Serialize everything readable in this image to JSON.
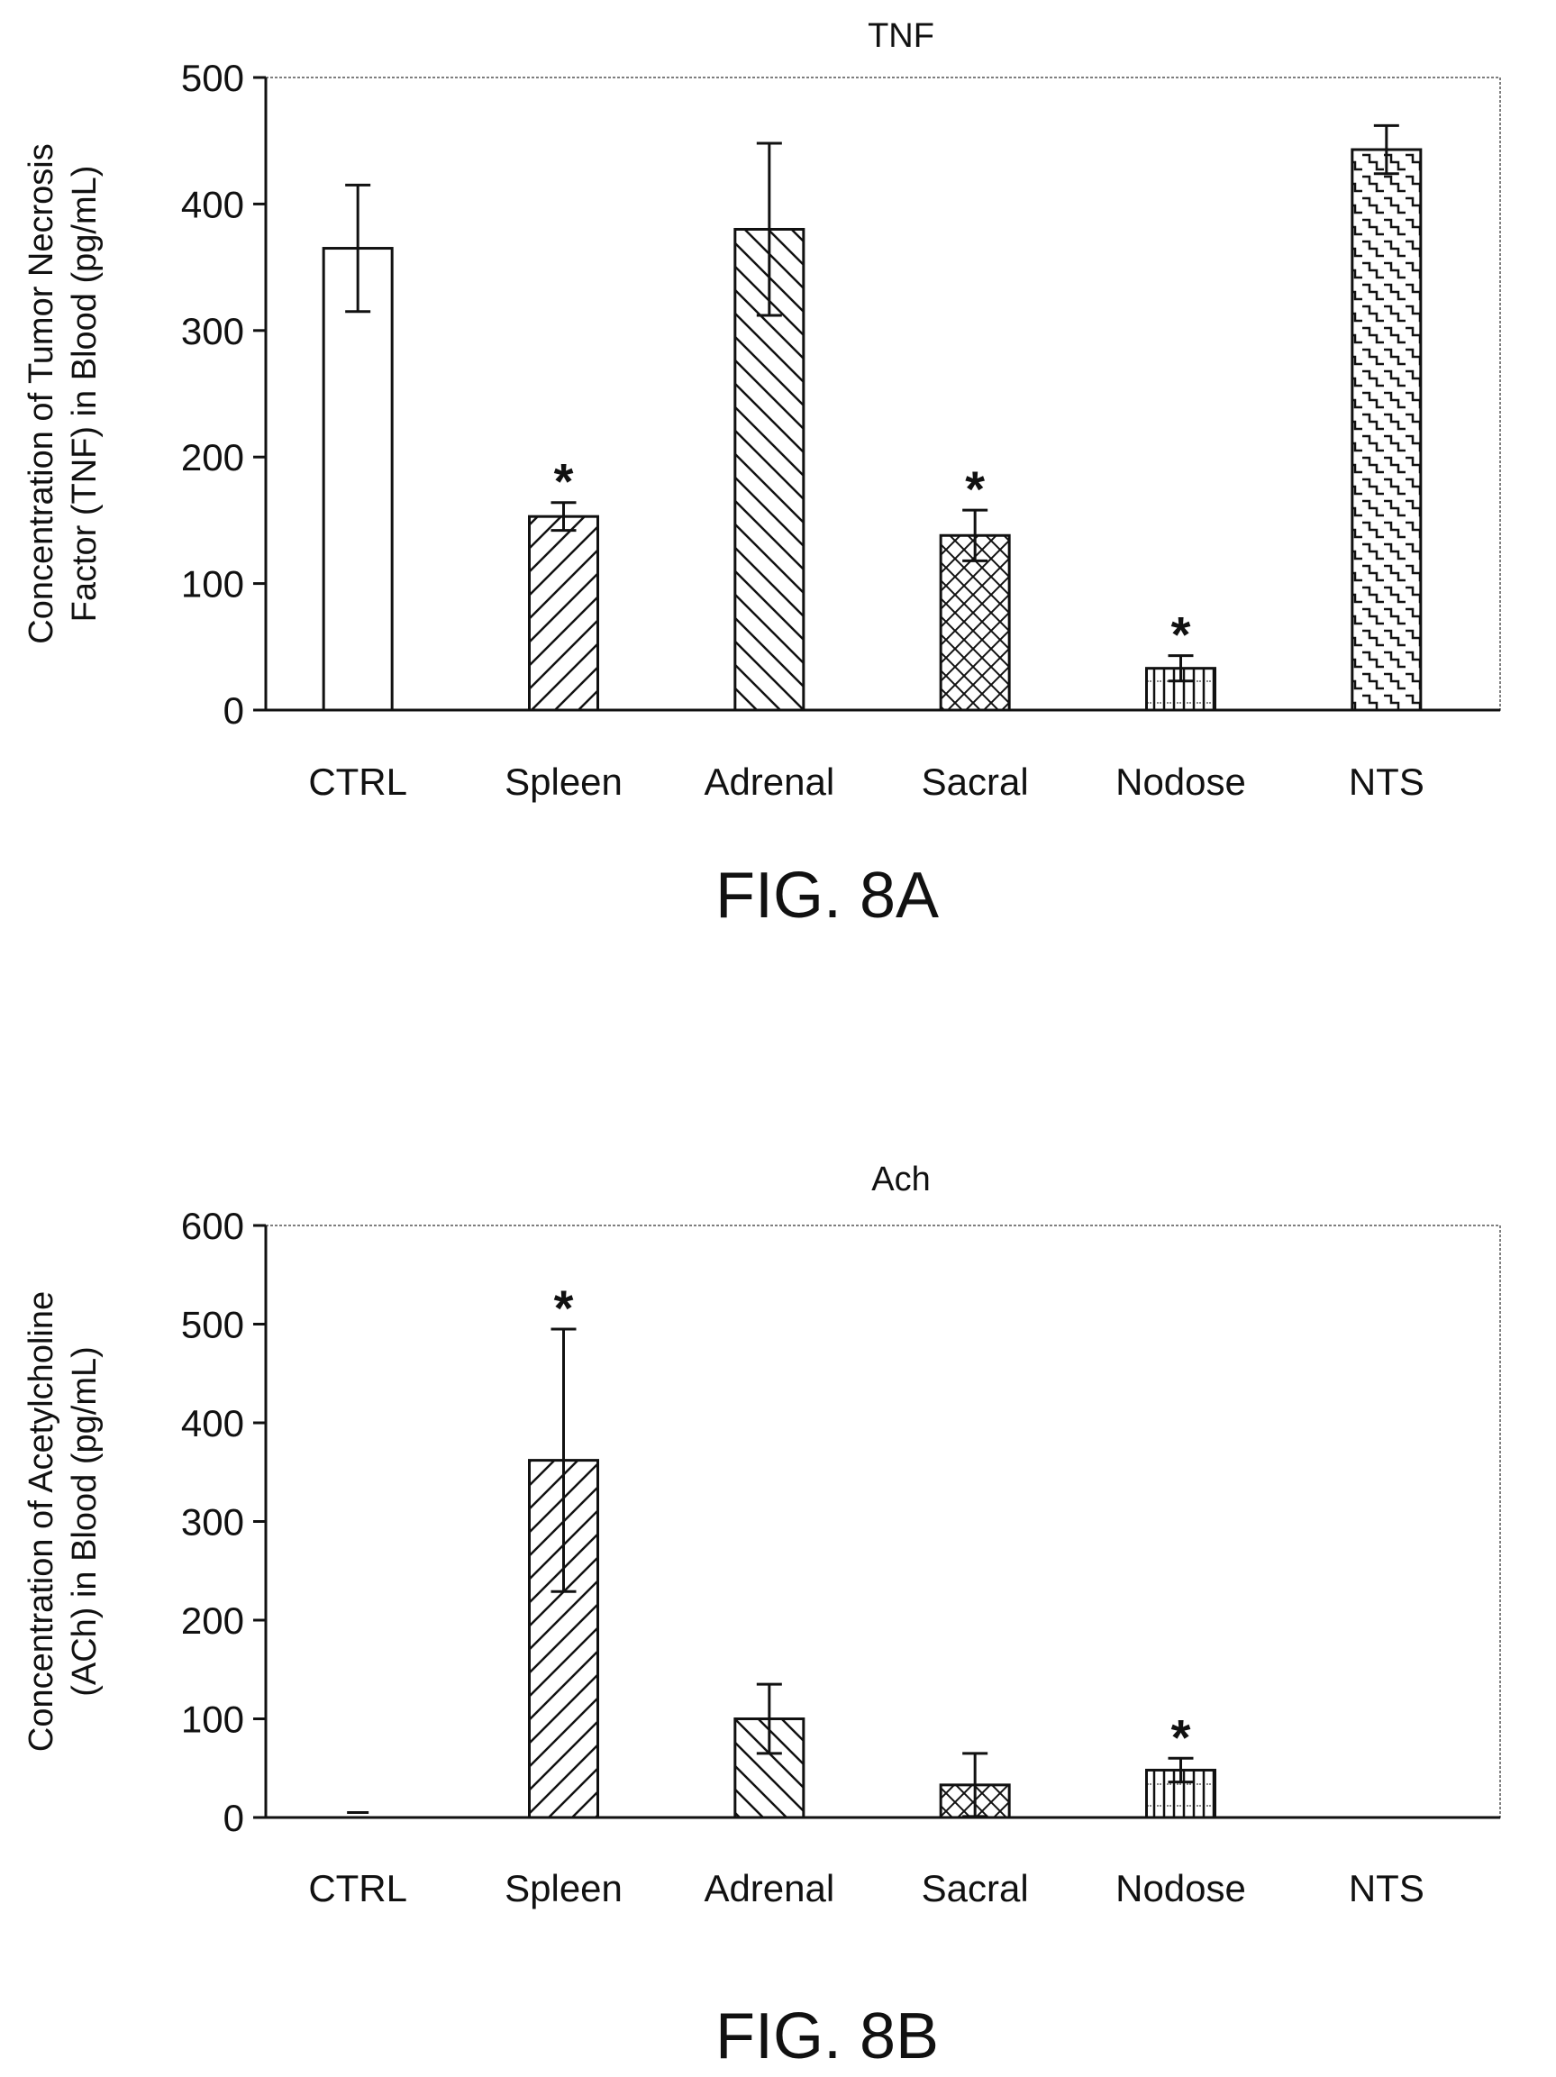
{
  "figures": [
    {
      "caption": "FIG. 8A"
    },
    {
      "caption": "FIG. 8B"
    }
  ],
  "chart_data": [
    {
      "type": "bar",
      "title": "TNF",
      "xlabel": "",
      "ylabel": "Concentration of Tumor Necrosis Factor (TNF) in Blood (pg/mL)",
      "ylabel_lines": [
        "Concentration of Tumor Necrosis",
        "Factor (TNF) in Blood (pg/mL)"
      ],
      "categories": [
        "CTRL",
        "Spleen",
        "Adrenal",
        "Sacral",
        "Nodose",
        "NTS"
      ],
      "values": [
        365,
        153,
        380,
        138,
        33,
        443
      ],
      "errors": [
        50,
        11,
        68,
        20,
        10,
        19
      ],
      "significance": [
        "",
        "*",
        "",
        "*",
        "*",
        ""
      ],
      "patterns": [
        "none",
        "forward-diagonal",
        "back-diagonal",
        "crosshatch",
        "vertical",
        "steps"
      ],
      "ylim": [
        0,
        500
      ],
      "yticks": [
        0,
        100,
        200,
        300,
        400,
        500
      ],
      "grid": false
    },
    {
      "type": "bar",
      "title": "Ach",
      "xlabel": "",
      "ylabel": "Concentration of Acetylcholine (ACh) in Blood (pg/mL)",
      "ylabel_lines": [
        "Concentration of Acetylcholine",
        "(ACh) in Blood (pg/mL)"
      ],
      "categories": [
        "CTRL",
        "Spleen",
        "Adrenal",
        "Sacral",
        "Nodose",
        "NTS"
      ],
      "values": [
        5,
        362,
        100,
        33,
        48,
        0
      ],
      "errors": [
        0,
        133,
        35,
        32,
        12,
        0
      ],
      "significance": [
        "",
        "*",
        "",
        "",
        "*",
        ""
      ],
      "patterns": [
        "none",
        "forward-diagonal",
        "back-diagonal",
        "crosshatch",
        "vertical",
        "steps"
      ],
      "ylim": [
        0,
        600
      ],
      "yticks": [
        0,
        100,
        200,
        300,
        400,
        500,
        600
      ],
      "grid": false
    }
  ]
}
